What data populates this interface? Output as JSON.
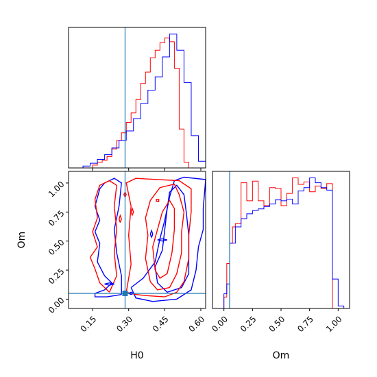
{
  "chart_data": {
    "type": "corner",
    "params": [
      "H0",
      "Om"
    ],
    "truth": {
      "H0": 0.285,
      "Om": 0.05
    },
    "colors": {
      "run1": "#ff0000",
      "run2": "#0000ff",
      "truth": "#1f77b4"
    },
    "panels": [
      {
        "id": "hist-H0",
        "type": "histogram",
        "xlim": [
          0.05,
          0.62
        ],
        "ylabel": "",
        "show_tick_labels": false,
        "xticks": [
          0.15,
          0.3,
          0.45,
          0.6
        ],
        "series": [
          {
            "color": "#ff0000",
            "edges": [
              0.15,
              0.17,
              0.19,
              0.21,
              0.23,
              0.25,
              0.27,
              0.29,
              0.31,
              0.33,
              0.35,
              0.37,
              0.39,
              0.41,
              0.43,
              0.45,
              0.47,
              0.49,
              0.51,
              0.53,
              0.55,
              0.57
            ],
            "counts": [
              3,
              6,
              8,
              12,
              20,
              29,
              37,
              48,
              58,
              72,
              89,
              101,
              116,
              124,
              132,
              137,
              133,
              105,
              41,
              6,
              0
            ]
          },
          {
            "color": "#0000ff",
            "edges": [
              0.11,
              0.14,
              0.17,
              0.2,
              0.23,
              0.26,
              0.29,
              0.32,
              0.35,
              0.38,
              0.41,
              0.44,
              0.47,
              0.5,
              0.53,
              0.56,
              0.59,
              0.62
            ],
            "counts": [
              2,
              5,
              9,
              14,
              21,
              29,
              39,
              52,
              68,
              82,
              96,
              117,
              141,
              124,
              90,
              34,
              7
            ]
          }
        ]
      },
      {
        "id": "joint-H0-Om",
        "type": "contour",
        "xlabel": "H0",
        "ylabel": "Om",
        "xlim": [
          0.05,
          0.62
        ],
        "ylim": [
          -0.08,
          1.1
        ],
        "xticks": [
          0.15,
          0.3,
          0.45,
          0.6
        ],
        "xtick_labels": [
          "0.15",
          "0.30",
          "0.45",
          "0.60"
        ],
        "yticks": [
          0.0,
          0.25,
          0.5,
          0.75,
          1.0
        ],
        "ytick_labels": [
          "0.00",
          "0.25",
          "0.50",
          "0.75",
          "1.00"
        ],
        "contours": [
          {
            "color": "#0000ff",
            "points": [
              [
                0.27,
                0.04
              ],
              [
                0.21,
                0.02
              ],
              [
                0.16,
                0.02
              ],
              [
                0.16,
                0.05
              ],
              [
                0.2,
                0.08
              ],
              [
                0.23,
                0.14
              ],
              [
                0.2,
                0.2
              ],
              [
                0.17,
                0.32
              ],
              [
                0.18,
                0.48
              ],
              [
                0.16,
                0.58
              ],
              [
                0.18,
                0.68
              ],
              [
                0.16,
                0.8
              ],
              [
                0.18,
                0.95
              ],
              [
                0.2,
                1.0
              ],
              [
                0.24,
                1.04
              ],
              [
                0.27,
                1.0
              ],
              [
                0.26,
                0.8
              ],
              [
                0.24,
                0.6
              ],
              [
                0.25,
                0.4
              ],
              [
                0.27,
                0.2
              ],
              [
                0.27,
                0.04
              ]
            ]
          },
          {
            "color": "#0000ff",
            "points": [
              [
                0.31,
                0.1
              ],
              [
                0.33,
                0.01
              ],
              [
                0.4,
                -0.02
              ],
              [
                0.5,
                0.0
              ],
              [
                0.56,
                0.08
              ],
              [
                0.58,
                0.25
              ],
              [
                0.59,
                0.45
              ],
              [
                0.61,
                0.6
              ],
              [
                0.61,
                0.78
              ],
              [
                0.62,
                1.03
              ],
              [
                0.53,
                1.05
              ],
              [
                0.49,
                1.02
              ],
              [
                0.47,
                0.88
              ],
              [
                0.45,
                0.68
              ],
              [
                0.43,
                0.52
              ],
              [
                0.41,
                0.32
              ],
              [
                0.36,
                0.18
              ],
              [
                0.31,
                0.1
              ]
            ]
          },
          {
            "color": "#0000ff",
            "points": [
              [
                0.41,
                0.28
              ],
              [
                0.44,
                0.42
              ],
              [
                0.45,
                0.6
              ],
              [
                0.46,
                0.78
              ],
              [
                0.47,
                0.92
              ],
              [
                0.5,
                0.98
              ],
              [
                0.53,
                0.9
              ],
              [
                0.54,
                0.74
              ],
              [
                0.55,
                0.55
              ],
              [
                0.55,
                0.38
              ],
              [
                0.55,
                0.22
              ],
              [
                0.52,
                0.1
              ],
              [
                0.46,
                0.06
              ],
              [
                0.42,
                0.14
              ],
              [
                0.41,
                0.28
              ]
            ]
          },
          {
            "color": "#ff0000",
            "points": [
              [
                0.22,
                0.06
              ],
              [
                0.18,
                0.14
              ],
              [
                0.16,
                0.26
              ],
              [
                0.14,
                0.36
              ],
              [
                0.17,
                0.45
              ],
              [
                0.15,
                0.58
              ],
              [
                0.17,
                0.7
              ],
              [
                0.16,
                0.86
              ],
              [
                0.18,
                0.98
              ],
              [
                0.22,
                1.02
              ],
              [
                0.25,
                0.98
              ],
              [
                0.24,
                0.8
              ],
              [
                0.25,
                0.6
              ],
              [
                0.24,
                0.4
              ],
              [
                0.25,
                0.2
              ],
              [
                0.22,
                0.06
              ]
            ]
          },
          {
            "color": "#ff0000",
            "points": [
              [
                0.29,
                0.06
              ],
              [
                0.31,
                0.3
              ],
              [
                0.3,
                0.55
              ],
              [
                0.31,
                0.8
              ],
              [
                0.29,
                1.0
              ],
              [
                0.33,
                1.04
              ],
              [
                0.42,
                1.03
              ],
              [
                0.51,
                1.02
              ],
              [
                0.56,
                0.95
              ],
              [
                0.56,
                0.75
              ],
              [
                0.55,
                0.55
              ],
              [
                0.55,
                0.35
              ],
              [
                0.53,
                0.15
              ],
              [
                0.5,
                0.06
              ],
              [
                0.45,
                0.02
              ],
              [
                0.38,
                0.03
              ],
              [
                0.33,
                0.04
              ],
              [
                0.29,
                0.06
              ]
            ]
          },
          {
            "color": "#ff0000",
            "points": [
              [
                0.39,
                0.15
              ],
              [
                0.37,
                0.35
              ],
              [
                0.38,
                0.55
              ],
              [
                0.37,
                0.7
              ],
              [
                0.39,
                0.85
              ],
              [
                0.43,
                0.96
              ],
              [
                0.49,
                0.99
              ],
              [
                0.51,
                0.9
              ],
              [
                0.53,
                0.75
              ],
              [
                0.52,
                0.58
              ],
              [
                0.52,
                0.4
              ],
              [
                0.5,
                0.22
              ],
              [
                0.47,
                0.1
              ],
              [
                0.42,
                0.08
              ],
              [
                0.39,
                0.15
              ]
            ]
          },
          {
            "color": "#ff0000",
            "points": [
              [
                0.41,
                0.25
              ],
              [
                0.4,
                0.45
              ],
              [
                0.42,
                0.6
              ],
              [
                0.44,
                0.75
              ],
              [
                0.47,
                0.85
              ],
              [
                0.49,
                0.78
              ],
              [
                0.49,
                0.6
              ],
              [
                0.48,
                0.4
              ],
              [
                0.46,
                0.22
              ],
              [
                0.43,
                0.18
              ],
              [
                0.41,
                0.25
              ]
            ]
          },
          {
            "color": "#ff0000",
            "points": [
              [
                0.415,
                0.84
              ],
              [
                0.425,
                0.84
              ],
              [
                0.425,
                0.86
              ],
              [
                0.415,
                0.86
              ],
              [
                0.415,
                0.84
              ]
            ]
          },
          {
            "color": "#ff0000",
            "points": [
              [
                0.285,
                0.88
              ],
              [
                0.29,
                0.9
              ],
              [
                0.285,
                0.92
              ],
              [
                0.28,
                0.9
              ],
              [
                0.285,
                0.88
              ]
            ]
          },
          {
            "color": "#ff0000",
            "points": [
              [
                0.315,
                0.72
              ],
              [
                0.32,
                0.75
              ],
              [
                0.315,
                0.78
              ],
              [
                0.31,
                0.75
              ],
              [
                0.315,
                0.72
              ]
            ]
          },
          {
            "color": "#ff0000",
            "points": [
              [
                0.265,
                0.66
              ],
              [
                0.27,
                0.69
              ],
              [
                0.265,
                0.72
              ],
              [
                0.26,
                0.69
              ],
              [
                0.265,
                0.66
              ]
            ]
          },
          {
            "color": "#0000ff",
            "points": [
              [
                0.44,
                0.5
              ],
              [
                0.46,
                0.51
              ],
              [
                0.44,
                0.52
              ],
              [
                0.42,
                0.51
              ],
              [
                0.44,
                0.5
              ]
            ]
          },
          {
            "color": "#0000ff",
            "points": [
              [
                0.395,
                0.53
              ],
              [
                0.4,
                0.56
              ],
              [
                0.395,
                0.59
              ],
              [
                0.39,
                0.56
              ],
              [
                0.395,
                0.53
              ]
            ]
          },
          {
            "color": "#0000ff",
            "points": [
              [
                0.22,
                0.12
              ],
              [
                0.24,
                0.13
              ],
              [
                0.22,
                0.14
              ],
              [
                0.2,
                0.13
              ],
              [
                0.22,
                0.12
              ]
            ]
          },
          {
            "color": "#0000ff",
            "points": [
              [
                0.31,
                0.04
              ],
              [
                0.32,
                0.05
              ],
              [
                0.31,
                0.06
              ],
              [
                0.3,
                0.05
              ],
              [
                0.31,
                0.04
              ]
            ]
          }
        ]
      },
      {
        "id": "hist-Om",
        "type": "histogram",
        "xlabel": "Om",
        "xlim": [
          -0.1,
          1.1
        ],
        "show_y_ticks": false,
        "xticks": [
          0.0,
          0.25,
          0.5,
          0.75,
          1.0
        ],
        "xtick_labels": [
          "0.00",
          "0.25",
          "0.50",
          "0.75",
          "1.00"
        ],
        "series": [
          {
            "color": "#ff0000",
            "edges": [
              0.0,
              0.025,
              0.05,
              0.075,
              0.1,
              0.15,
              0.2,
              0.25,
              0.3,
              0.35,
              0.4,
              0.45,
              0.5,
              0.55,
              0.6,
              0.65,
              0.7,
              0.75,
              0.8,
              0.85,
              0.9,
              0.95,
              1.0
            ],
            "counts": [
              14,
              55,
              80,
              100,
              104,
              154,
              132,
              156,
              132,
              126,
              148,
              147,
              126,
              141,
              160,
              152,
              155,
              143,
              150,
              147,
              153,
              0
            ]
          },
          {
            "color": "#0000ff",
            "edges": [
              -0.1,
              0.0,
              0.025,
              0.05,
              0.1,
              0.15,
              0.2,
              0.25,
              0.3,
              0.35,
              0.4,
              0.45,
              0.5,
              0.55,
              0.6,
              0.65,
              0.7,
              0.75,
              0.8,
              0.85,
              0.9,
              0.95,
              1.0,
              1.05,
              1.1
            ],
            "counts": [
              0,
              18,
              30,
              80,
              100,
              110,
              116,
              120,
              122,
              125,
              128,
              133,
              132,
              134,
              128,
              144,
              148,
              160,
              154,
              148,
              145,
              36,
              3,
              0
            ]
          }
        ]
      }
    ]
  }
}
